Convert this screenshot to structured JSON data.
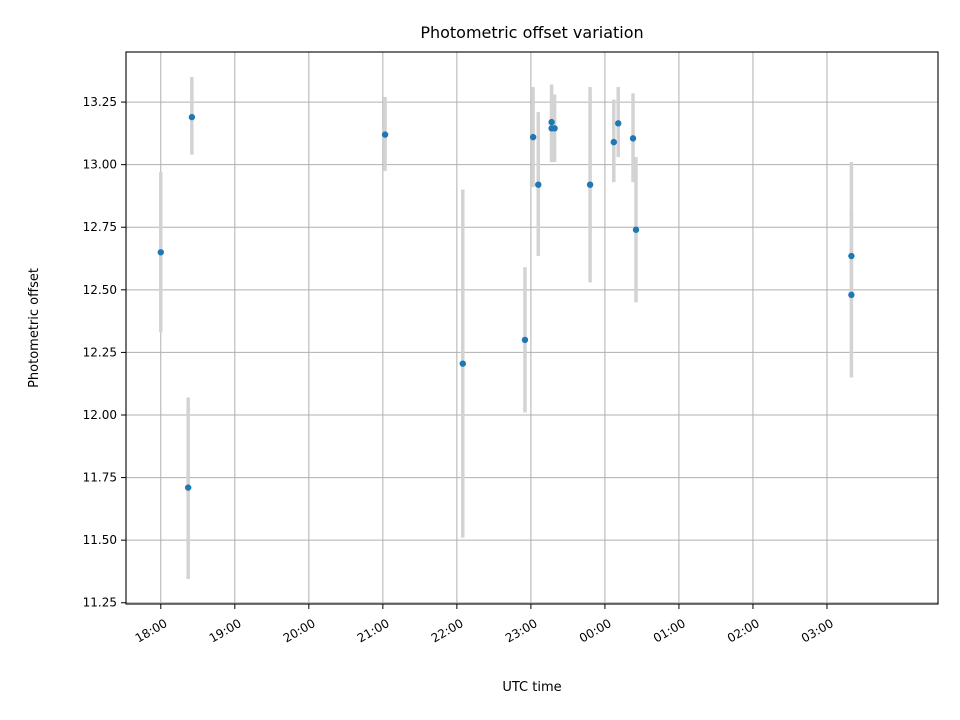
{
  "chart_data": {
    "type": "scatter",
    "title": "Photometric offset variation",
    "xlabel": "UTC time",
    "ylabel": "Photometric offset",
    "x_unit": "hours after 18:00 UTC",
    "xlim": [
      -0.47,
      10.5
    ],
    "ylim": [
      11.245,
      13.45
    ],
    "grid": true,
    "x_ticks": [
      {
        "value": 0,
        "label": "18:00"
      },
      {
        "value": 1,
        "label": "19:00"
      },
      {
        "value": 2,
        "label": "20:00"
      },
      {
        "value": 3,
        "label": "21:00"
      },
      {
        "value": 4,
        "label": "22:00"
      },
      {
        "value": 5,
        "label": "23:00"
      },
      {
        "value": 6,
        "label": "00:00"
      },
      {
        "value": 7,
        "label": "01:00"
      },
      {
        "value": 8,
        "label": "02:00"
      },
      {
        "value": 9,
        "label": "03:00"
      }
    ],
    "y_ticks": [
      {
        "value": 11.25,
        "label": "11.25"
      },
      {
        "value": 11.5,
        "label": "11.50"
      },
      {
        "value": 11.75,
        "label": "11.75"
      },
      {
        "value": 12.0,
        "label": "12.00"
      },
      {
        "value": 12.25,
        "label": "12.25"
      },
      {
        "value": 12.5,
        "label": "12.50"
      },
      {
        "value": 12.75,
        "label": "12.75"
      },
      {
        "value": 13.0,
        "label": "13.00"
      },
      {
        "value": 13.25,
        "label": "13.25"
      }
    ],
    "marker_color": "#1f77b4",
    "errorbar_color": "#d3d3d3",
    "points": [
      {
        "x": 0.0,
        "y": 12.65,
        "err_low": 12.33,
        "err_high": 12.97
      },
      {
        "x": 0.37,
        "y": 11.71,
        "err_low": 11.345,
        "err_high": 12.07
      },
      {
        "x": 0.42,
        "y": 13.19,
        "err_low": 13.04,
        "err_high": 13.35
      },
      {
        "x": 3.03,
        "y": 13.12,
        "err_low": 12.975,
        "err_high": 13.27
      },
      {
        "x": 4.08,
        "y": 12.205,
        "err_low": 11.51,
        "err_high": 12.9
      },
      {
        "x": 4.92,
        "y": 12.3,
        "err_low": 12.01,
        "err_high": 12.59
      },
      {
        "x": 5.03,
        "y": 13.11,
        "err_low": 12.91,
        "err_high": 13.31
      },
      {
        "x": 5.1,
        "y": 12.92,
        "err_low": 12.635,
        "err_high": 13.21
      },
      {
        "x": 5.28,
        "y": 13.17,
        "err_low": 13.02,
        "err_high": 13.32
      },
      {
        "x": 5.28,
        "y": 13.145,
        "err_low": 13.01,
        "err_high": 13.28
      },
      {
        "x": 5.32,
        "y": 13.145,
        "err_low": 13.01,
        "err_high": 13.28
      },
      {
        "x": 5.8,
        "y": 12.92,
        "err_low": 12.53,
        "err_high": 13.31
      },
      {
        "x": 6.12,
        "y": 13.09,
        "err_low": 12.93,
        "err_high": 13.26
      },
      {
        "x": 6.18,
        "y": 13.165,
        "err_low": 13.03,
        "err_high": 13.31
      },
      {
        "x": 6.38,
        "y": 13.105,
        "err_low": 12.93,
        "err_high": 13.285
      },
      {
        "x": 6.42,
        "y": 12.74,
        "err_low": 12.45,
        "err_high": 13.03
      },
      {
        "x": 9.33,
        "y": 12.635,
        "err_low": 12.46,
        "err_high": 12.81
      },
      {
        "x": 9.33,
        "y": 12.48,
        "err_low": 12.15,
        "err_high": 13.01
      }
    ]
  }
}
